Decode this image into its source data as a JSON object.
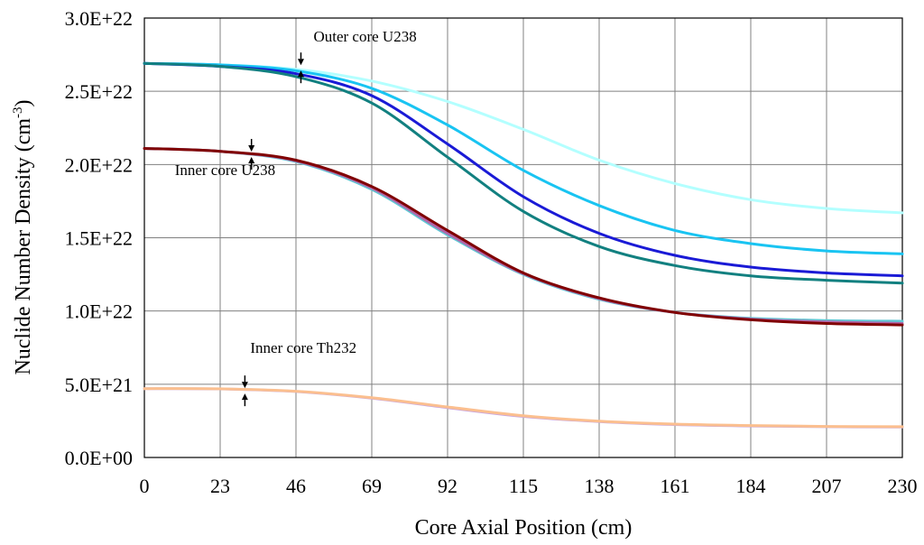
{
  "chart_data": {
    "type": "line",
    "xlabel": "Core Axial Position (cm)",
    "ylabel_main": "Nuclide Number Density (cm",
    "ylabel_sup": "-3",
    "ylabel_close": ")",
    "xlim": [
      0,
      230
    ],
    "ylim": [
      0,
      3e+22
    ],
    "x_ticks": [
      0,
      23,
      46,
      69,
      92,
      115,
      138,
      161,
      184,
      207,
      230
    ],
    "y_ticks": [
      {
        "value": 0,
        "label": "0.0E+00"
      },
      {
        "value": 5e+21,
        "label": "5.0E+21"
      },
      {
        "value": 1e+22,
        "label": "1.0E+22"
      },
      {
        "value": 1.5e+22,
        "label": "1.5E+22"
      },
      {
        "value": 2e+22,
        "label": "2.0E+22"
      },
      {
        "value": 2.5e+22,
        "label": "2.5E+22"
      },
      {
        "value": 3e+22,
        "label": "3.0E+22"
      }
    ],
    "grid": true,
    "x": [
      0,
      23,
      46,
      69,
      92,
      115,
      138,
      161,
      184,
      207,
      230
    ],
    "series": [
      {
        "color": "#b3ffff",
        "values": [
          2.69e+22,
          2.68e+22,
          2.65e+22,
          2.57e+22,
          2.43e+22,
          2.24e+22,
          2.03e+22,
          1.87e+22,
          1.76e+22,
          1.7e+22,
          1.67e+22
        ]
      },
      {
        "color": "#19c4f2",
        "values": [
          2.69e+22,
          2.68e+22,
          2.64e+22,
          2.52e+22,
          2.27e+22,
          1.96e+22,
          1.72e+22,
          1.55e+22,
          1.46e+22,
          1.41e+22,
          1.39e+22
        ]
      },
      {
        "color": "#1a1ad6",
        "values": [
          2.69e+22,
          2.67e+22,
          2.62e+22,
          2.47e+22,
          2.14e+22,
          1.78e+22,
          1.53e+22,
          1.38e+22,
          1.3e+22,
          1.26e+22,
          1.24e+22
        ]
      },
      {
        "color": "#128080",
        "values": [
          2.69e+22,
          2.67e+22,
          2.6e+22,
          2.42e+22,
          2.05e+22,
          1.68e+22,
          1.44e+22,
          1.31e+22,
          1.24e+22,
          1.21e+22,
          1.19e+22
        ]
      },
      {
        "color": "#5fc7d4",
        "values": [
          2.11e+22,
          2.09e+22,
          2.02e+22,
          1.83e+22,
          1.52e+22,
          1.25e+22,
          1.08e+22,
          9.9e+21,
          9.5e+21,
          9.35e+21,
          9.3e+21
        ]
      },
      {
        "color": "#b066a8",
        "values": [
          2.11e+22,
          2.09e+22,
          2.025e+22,
          1.84e+22,
          1.53e+22,
          1.255e+22,
          1.085e+22,
          9.9e+21,
          9.45e+21,
          9.25e+21,
          9.15e+21
        ]
      },
      {
        "color": "#800000",
        "values": [
          2.11e+22,
          2.09e+22,
          2.03e+22,
          1.85e+22,
          1.55e+22,
          1.26e+22,
          1.09e+22,
          9.9e+21,
          9.4e+21,
          9.15e+21,
          9.05e+21
        ]
      },
      {
        "color": "#c9a6e0",
        "values": [
          4.7e+21,
          4.68e+21,
          4.5e+21,
          4.05e+21,
          3.4e+21,
          2.8e+21,
          2.45e+21,
          2.25e+21,
          2.15e+21,
          2.1e+21,
          2.08e+21
        ]
      },
      {
        "color": "#fbbf8f",
        "values": [
          4.7e+21,
          4.69e+21,
          4.52e+21,
          4.08e+21,
          3.45e+21,
          2.85e+21,
          2.48e+21,
          2.28e+21,
          2.18e+21,
          2.12e+21,
          2.1e+21
        ]
      }
    ],
    "annotations": [
      {
        "text": "Outer core U238",
        "arrow_x": 47.5,
        "arrow_y": 2.66e+22
      },
      {
        "text": "Inner core U238",
        "arrow_x": 32.5,
        "arrow_y": 2.07e+22
      },
      {
        "text": "Inner core Th232",
        "arrow_x": 30.5,
        "arrow_y": 4.55e+21
      }
    ]
  }
}
